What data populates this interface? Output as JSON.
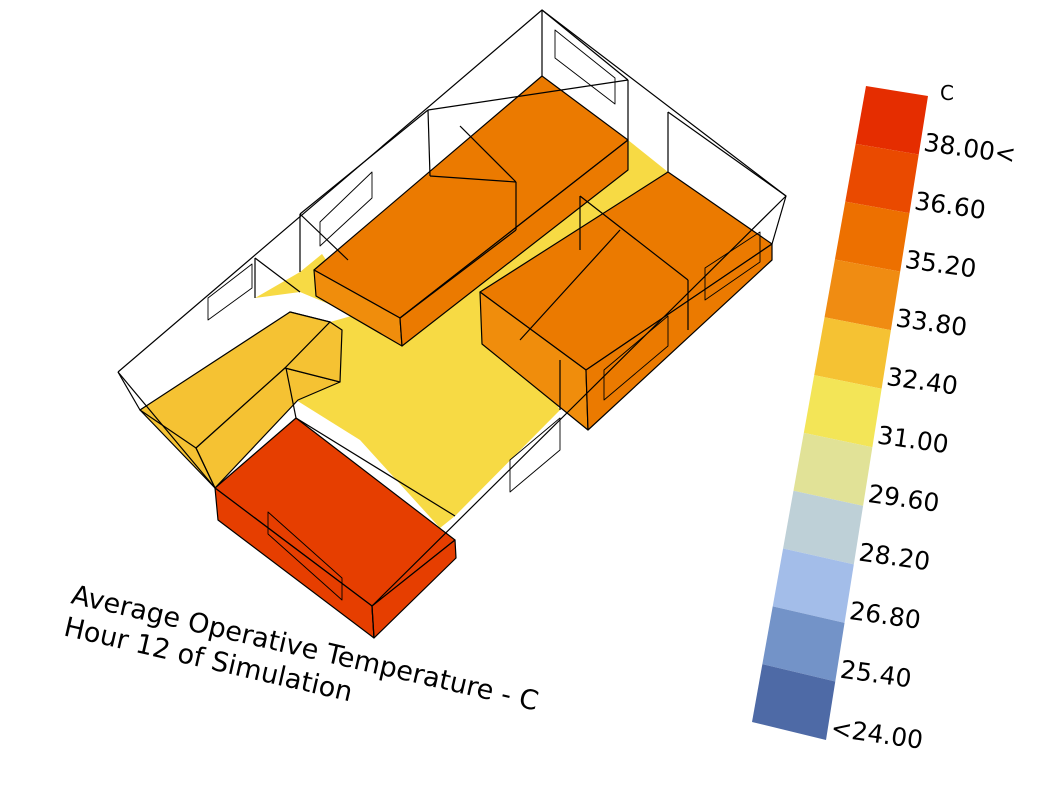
{
  "title": {
    "line1": "Average Operative Temperature  - C",
    "line2": "Hour 12 of Simulation"
  },
  "legend": {
    "unit": "C",
    "labels": [
      "38.00<",
      "36.60",
      "35.20",
      "33.80",
      "32.40",
      "31.00",
      "29.60",
      "28.20",
      "26.80",
      "25.40",
      "<24.00"
    ],
    "colors": [
      "#e52d00",
      "#ea4a00",
      "#ed7000",
      "#f08c12",
      "#f5c233",
      "#f3e557",
      "#e1e297",
      "#bed0d7",
      "#a3bde9",
      "#7393c8",
      "#4e6aa6"
    ]
  },
  "zone_colors": {
    "hot": "#e63e00",
    "warm": "#eb7a00",
    "warm_light": "#f08d0c",
    "mild": "#f5c233",
    "corridor": "#f7da44"
  }
}
